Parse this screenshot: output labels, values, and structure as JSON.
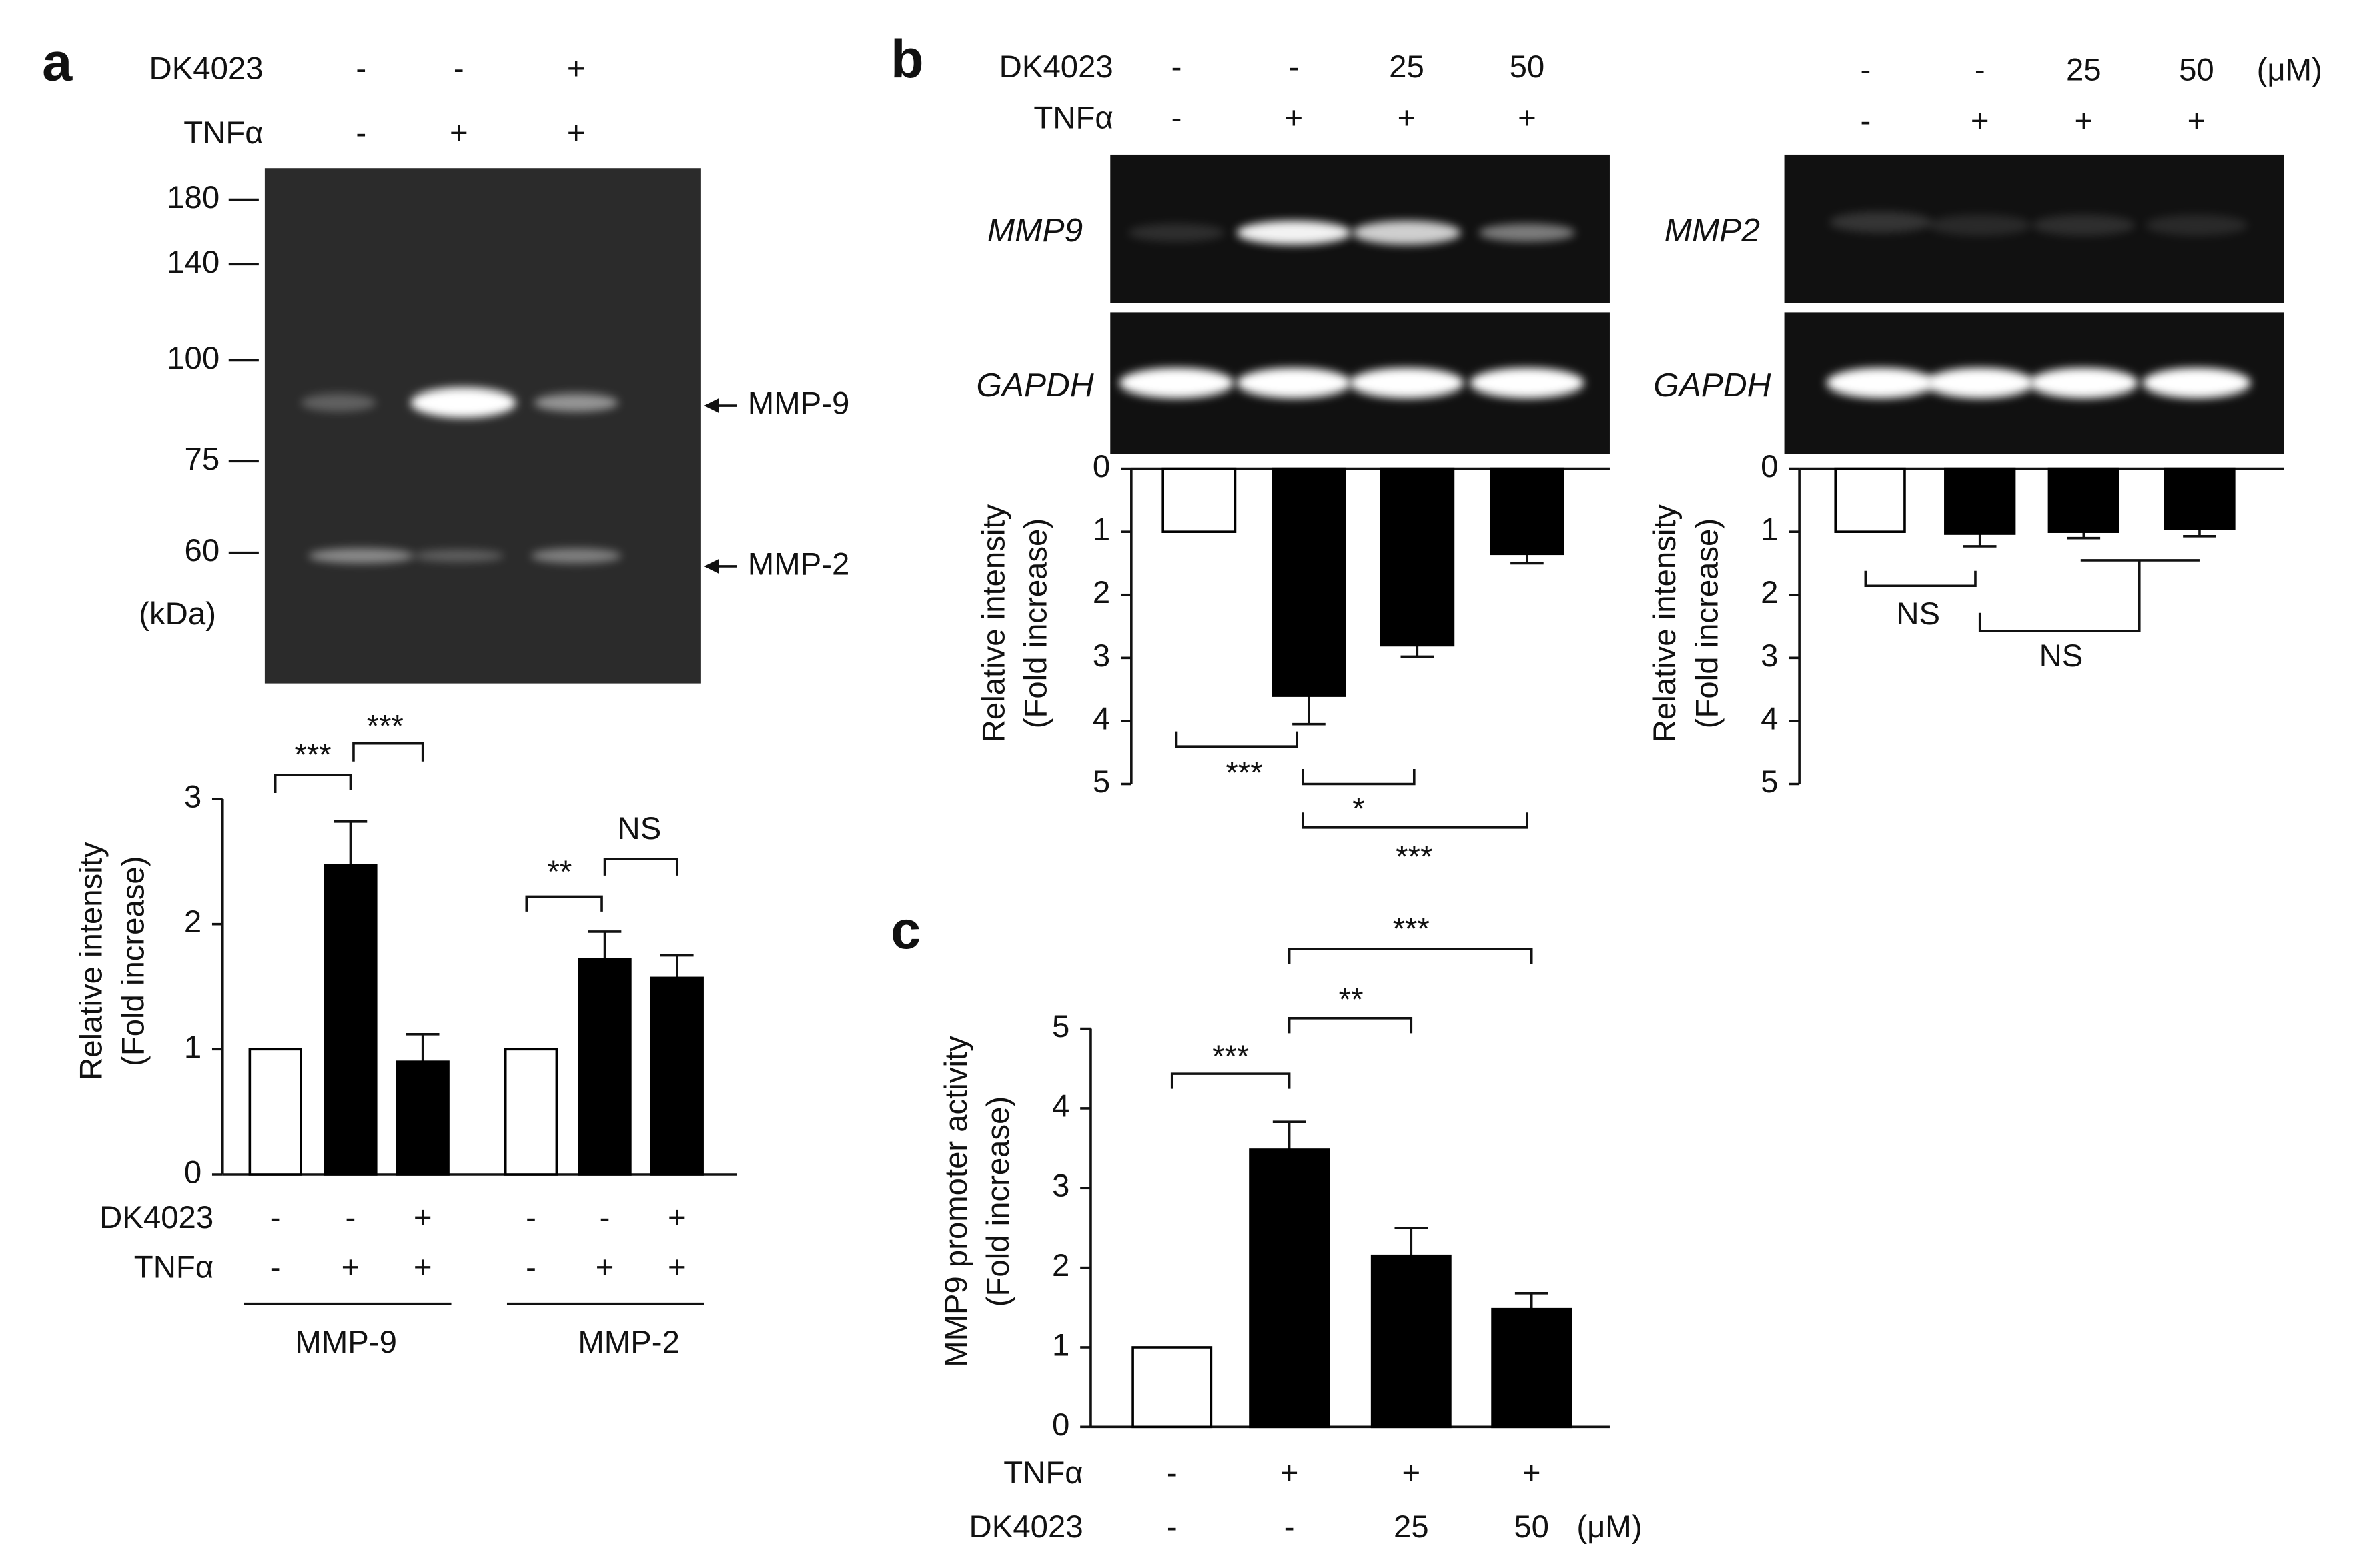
{
  "panel_labels": [
    "a",
    "b",
    "c"
  ],
  "gels": [
    {
      "header": [
        {
          "label": "DK4023",
          "values": [
            "-",
            "-",
            "+"
          ]
        },
        {
          "label": "TNFα",
          "values": [
            "-",
            "+",
            "+"
          ]
        }
      ],
      "markers": [
        180,
        140,
        100,
        75,
        60
      ],
      "marker_unit": "(kDa)",
      "bands": [
        "MMP-9",
        "MMP-2"
      ]
    },
    {
      "header": [
        {
          "label": "DK4023",
          "values": [
            "-",
            "-",
            "25",
            "50"
          ]
        },
        {
          "label": "TNFα",
          "values": [
            "-",
            "+",
            "+",
            "+"
          ]
        }
      ],
      "lanes": [
        "MMP9",
        "GAPDH"
      ]
    },
    {
      "header": [
        {
          "values": [
            "-",
            "-",
            "25",
            "50"
          ],
          "unit": "(μM)"
        },
        {
          "values": [
            "-",
            "+",
            "+",
            "+"
          ]
        }
      ],
      "lanes": [
        "MMP2",
        "GAPDH"
      ]
    }
  ],
  "chart_data": [
    {
      "type": "bar",
      "y_label": [
        "Relative intensity",
        "(Fold increase)"
      ],
      "ylim": [
        0,
        3
      ],
      "yticks": [
        0,
        1,
        2,
        3
      ],
      "values": [
        1,
        2.47,
        0.9,
        1,
        1.72,
        1.57
      ],
      "errors": [
        null,
        0.35,
        0.22,
        null,
        0.22,
        0.18
      ],
      "colors": [
        "#ffffff",
        "#000000",
        "#000000",
        "#ffffff",
        "#000000",
        "#000000"
      ],
      "conditions": [
        {
          "label": "DK4023",
          "values": [
            "-",
            "-",
            "+",
            "-",
            "-",
            "+"
          ]
        },
        {
          "label": "TNFα",
          "values": [
            "-",
            "+",
            "+",
            "-",
            "+",
            "+"
          ]
        }
      ],
      "groups": [
        "MMP-9",
        "MMP-2"
      ],
      "significance": [
        "***",
        "***",
        "**",
        "NS"
      ]
    },
    {
      "type": "bar",
      "inverted": true,
      "y_label": [
        "Relative intensity",
        "(Fold increase)"
      ],
      "ylim": [
        0,
        5
      ],
      "yticks": [
        0,
        1,
        2,
        3,
        4,
        5
      ],
      "values": [
        1,
        3.6,
        2.8,
        1.35
      ],
      "errors": [
        null,
        0.45,
        0.18,
        0.15
      ],
      "colors": [
        "#ffffff",
        "#000000",
        "#000000",
        "#000000"
      ],
      "significance": [
        "***",
        "*",
        "***"
      ]
    },
    {
      "type": "bar",
      "inverted": true,
      "y_label": [
        "Relative intensity",
        "(Fold increase)"
      ],
      "ylim": [
        0,
        5
      ],
      "yticks": [
        0,
        1,
        2,
        3,
        4,
        5
      ],
      "values": [
        1,
        1.03,
        1.0,
        0.95
      ],
      "errors": [
        null,
        0.2,
        0.1,
        0.12
      ],
      "colors": [
        "#ffffff",
        "#000000",
        "#000000",
        "#000000"
      ],
      "significance": [
        "NS",
        "NS"
      ]
    },
    {
      "type": "bar",
      "y_label": [
        "MMP9 promoter activity",
        "(Fold increase)"
      ],
      "ylim": [
        0,
        5
      ],
      "yticks": [
        0,
        1,
        2,
        3,
        4,
        5
      ],
      "values": [
        1,
        3.48,
        2.15,
        1.48
      ],
      "errors": [
        null,
        0.35,
        0.35,
        0.2
      ],
      "colors": [
        "#ffffff",
        "#000000",
        "#000000",
        "#000000"
      ],
      "conditions": [
        {
          "label": "TNFα",
          "values": [
            "-",
            "+",
            "+",
            "+"
          ]
        },
        {
          "label": "DK4023",
          "values": [
            "-",
            "-",
            "25",
            "50"
          ],
          "unit": "(μM)"
        }
      ],
      "significance": [
        "***",
        "**",
        "***"
      ]
    }
  ]
}
